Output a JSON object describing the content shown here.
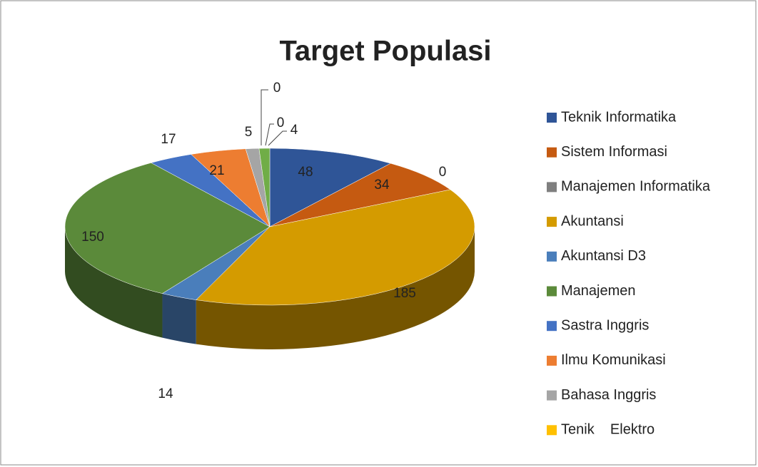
{
  "chart_data": {
    "type": "pie3d",
    "title": "Target Populasi",
    "categories": [
      "Teknik Informatika",
      "Sistem Informasi",
      "Manajemen Informatika",
      "Akuntansi",
      "Akuntansi D3",
      "Manajemen",
      "Sastra Inggris",
      "Ilmu Komunikasi",
      "Bahasa Inggris",
      "Tenik    Elektro",
      null,
      null
    ],
    "values": [
      48,
      34,
      0,
      185,
      14,
      150,
      17,
      21,
      5,
      0,
      0,
      4
    ],
    "colors": [
      "#2f5597",
      "#c55a11",
      "#7f7f7f",
      "#d49b00",
      "#4a7ebb",
      "#5b8a3a",
      "#4472c4",
      "#ed7d31",
      "#a5a5a5",
      "#ffc000",
      "#255e91",
      "#70ad47"
    ],
    "legend": "right"
  }
}
